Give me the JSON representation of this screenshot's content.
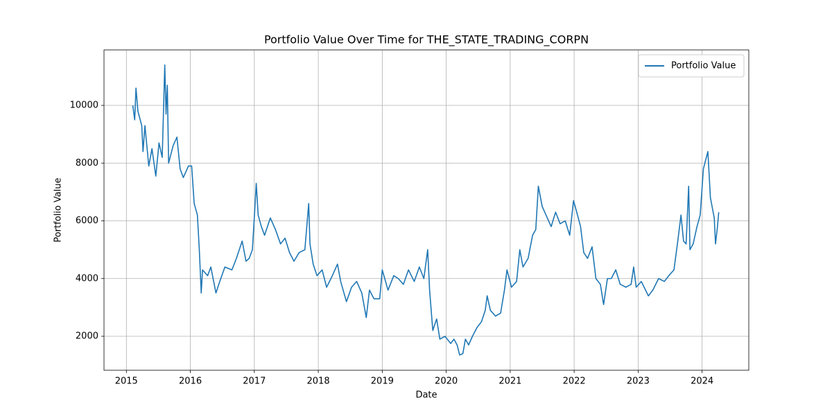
{
  "chart_data": {
    "type": "line",
    "title": "Portfolio Value Over Time for THE_STATE_TRADING_CORPN",
    "x_label": "Date",
    "y_label": "Portfolio Value",
    "x": [
      2015.1,
      2015.13,
      2015.15,
      2015.18,
      2015.24,
      2015.26,
      2015.29,
      2015.35,
      2015.4,
      2015.46,
      2015.51,
      2015.56,
      2015.6,
      2015.62,
      2015.64,
      2015.66,
      2015.73,
      2015.79,
      2015.84,
      2015.89,
      2015.97,
      2016.02,
      2016.06,
      2016.11,
      2016.14,
      2016.17,
      2016.19,
      2016.27,
      2016.32,
      2016.4,
      2016.46,
      2016.54,
      2016.65,
      2016.72,
      2016.81,
      2016.87,
      2016.92,
      2016.97,
      2017.01,
      2017.03,
      2017.06,
      2017.11,
      2017.16,
      2017.25,
      2017.33,
      2017.41,
      2017.48,
      2017.55,
      2017.62,
      2017.7,
      2017.79,
      2017.85,
      2017.87,
      2017.92,
      2017.98,
      2018.06,
      2018.13,
      2018.22,
      2018.3,
      2018.35,
      2018.44,
      2018.52,
      2018.6,
      2018.68,
      2018.75,
      2018.8,
      2018.87,
      2018.96,
      2019.0,
      2019.09,
      2019.18,
      2019.25,
      2019.33,
      2019.41,
      2019.5,
      2019.58,
      2019.65,
      2019.71,
      2019.74,
      2019.79,
      2019.85,
      2019.9,
      2019.98,
      2020.07,
      2020.12,
      2020.17,
      2020.21,
      2020.26,
      2020.3,
      2020.35,
      2020.41,
      2020.48,
      2020.55,
      2020.61,
      2020.64,
      2020.69,
      2020.77,
      2020.85,
      2020.91,
      2020.95,
      2021.02,
      2021.1,
      2021.15,
      2021.2,
      2021.28,
      2021.35,
      2021.4,
      2021.44,
      2021.5,
      2021.56,
      2021.64,
      2021.71,
      2021.78,
      2021.86,
      2021.93,
      2021.99,
      2022.04,
      2022.1,
      2022.15,
      2022.21,
      2022.28,
      2022.34,
      2022.41,
      2022.46,
      2022.52,
      2022.58,
      2022.65,
      2022.72,
      2022.81,
      2022.89,
      2022.93,
      2022.97,
      2023.05,
      2023.16,
      2023.23,
      2023.32,
      2023.41,
      2023.48,
      2023.56,
      2023.62,
      2023.67,
      2023.71,
      2023.75,
      2023.79,
      2023.81,
      2023.86,
      2023.92,
      2023.97,
      2024.02,
      2024.09,
      2024.13,
      2024.19,
      2024.21,
      2024.24,
      2024.26
    ],
    "series": [
      {
        "name": "Portfolio Value",
        "color": "#1f77b4",
        "values": [
          10000,
          9500,
          10600,
          9800,
          9300,
          8400,
          9300,
          7900,
          8500,
          7550,
          8700,
          8200,
          11400,
          9700,
          10700,
          8000,
          8600,
          8900,
          7800,
          7500,
          7900,
          7900,
          6600,
          6200,
          5000,
          3500,
          4300,
          4100,
          4400,
          3500,
          3900,
          4400,
          4300,
          4700,
          5300,
          4600,
          4700,
          5000,
          6500,
          7300,
          6200,
          5800,
          5500,
          6100,
          5700,
          5200,
          5400,
          4900,
          4600,
          4900,
          5000,
          6600,
          5200,
          4500,
          4100,
          4300,
          3700,
          4100,
          4500,
          3900,
          3200,
          3700,
          3900,
          3500,
          2650,
          3600,
          3300,
          3300,
          4300,
          3600,
          4100,
          4000,
          3800,
          4300,
          3900,
          4400,
          4000,
          5000,
          3600,
          2200,
          2600,
          1900,
          2000,
          1750,
          1900,
          1700,
          1350,
          1400,
          1900,
          1700,
          2000,
          2300,
          2500,
          2900,
          3400,
          2900,
          2700,
          2800,
          3600,
          4300,
          3700,
          3900,
          5000,
          4400,
          4700,
          5500,
          5700,
          7200,
          6500,
          6200,
          5800,
          6300,
          5900,
          6000,
          5500,
          6700,
          6300,
          5800,
          4900,
          4700,
          5100,
          4000,
          3800,
          3100,
          4000,
          4000,
          4300,
          3800,
          3700,
          3800,
          4400,
          3700,
          3900,
          3400,
          3600,
          4000,
          3900,
          4100,
          4300,
          5300,
          6200,
          5300,
          5200,
          7200,
          5000,
          5200,
          5800,
          6200,
          7800,
          8400,
          6800,
          6100,
          5200,
          5800,
          6300
        ]
      }
    ],
    "xlim": [
      2014.65,
      2024.73
    ],
    "xticks": [
      2015,
      2016,
      2017,
      2018,
      2019,
      2020,
      2021,
      2022,
      2023,
      2024
    ],
    "ylim": [
      823,
      11922
    ],
    "yticks": [
      2000,
      4000,
      6000,
      8000,
      10000
    ],
    "grid": true,
    "legend": "upper right"
  }
}
